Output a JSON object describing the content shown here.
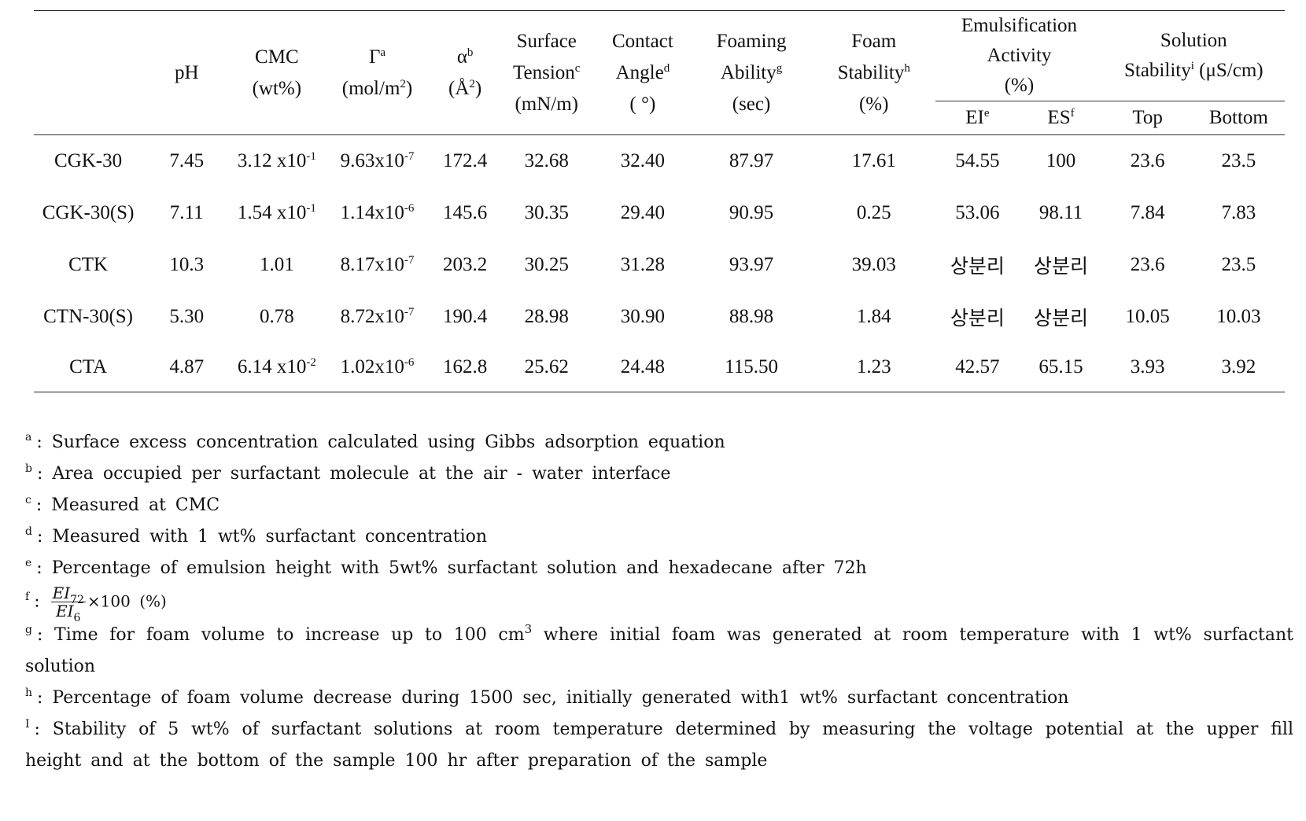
{
  "table": {
    "columns": [
      {
        "lines": [
          [
            {
              "t": "pH"
            }
          ]
        ]
      },
      {
        "lines": [
          [
            {
              "t": "CMC"
            }
          ],
          [
            {
              "t": "(wt%)"
            }
          ]
        ]
      },
      {
        "lines": [
          [
            {
              "t": "Γ"
            },
            {
              "s": "a"
            }
          ],
          [
            {
              "t": "(mol/m"
            },
            {
              "s": "2"
            },
            {
              "t": ")"
            }
          ]
        ]
      },
      {
        "lines": [
          [
            {
              "t": "α"
            },
            {
              "s": "b"
            }
          ],
          [
            {
              "t": "(Å"
            },
            {
              "s": "2"
            },
            {
              "t": ")"
            }
          ]
        ]
      },
      {
        "lines": [
          [
            {
              "t": "Surface"
            }
          ],
          [
            {
              "t": "Tension"
            },
            {
              "s": "c"
            }
          ],
          [
            {
              "t": "(mN/m)"
            }
          ]
        ]
      },
      {
        "lines": [
          [
            {
              "t": "Contact"
            }
          ],
          [
            {
              "t": "Angle"
            },
            {
              "s": "d"
            }
          ],
          [
            {
              "t": "( °)"
            }
          ]
        ]
      },
      {
        "lines": [
          [
            {
              "t": "Foaming"
            }
          ],
          [
            {
              "t": "Ability"
            },
            {
              "s": "g"
            }
          ],
          [
            {
              "t": "(sec)"
            }
          ]
        ]
      },
      {
        "lines": [
          [
            {
              "t": "Foam"
            }
          ],
          [
            {
              "t": "Stability"
            },
            {
              "s": "h"
            }
          ],
          [
            {
              "t": "(%)"
            }
          ]
        ]
      }
    ],
    "groups": [
      {
        "lines": [
          [
            {
              "t": "Emulsification"
            }
          ],
          [
            {
              "t": "Activity"
            }
          ],
          [
            {
              "t": "(%)"
            }
          ]
        ],
        "sub": [
          [
            {
              "t": "EI"
            },
            {
              "s": "e"
            }
          ],
          [
            {
              "t": "ES"
            },
            {
              "s": "f"
            }
          ]
        ]
      },
      {
        "lines": [
          [
            {
              "t": "Solution"
            }
          ],
          [
            {
              "t": "Stability"
            },
            {
              "s": "i"
            },
            {
              "t": " (μS/cm)"
            }
          ]
        ],
        "sub": [
          [
            {
              "t": "Top"
            }
          ],
          [
            {
              "t": "Bottom"
            }
          ]
        ]
      }
    ],
    "rows": [
      {
        "label": "CGK-30",
        "cells": [
          "7.45",
          [
            {
              "t": "3.12 x10"
            },
            {
              "s": "-1"
            }
          ],
          [
            {
              "t": "9.63x10"
            },
            {
              "s": "-7"
            }
          ],
          "172.4",
          "32.68",
          "32.40",
          "87.97",
          "17.61",
          "54.55",
          "100",
          "23.6",
          "23.5"
        ]
      },
      {
        "label": "CGK-30(S)",
        "cells": [
          "7.11",
          [
            {
              "t": "1.54 x10"
            },
            {
              "s": "-1"
            }
          ],
          [
            {
              "t": "1.14x10"
            },
            {
              "s": "-6"
            }
          ],
          "145.6",
          "30.35",
          "29.40",
          "90.95",
          "0.25",
          "53.06",
          "98.11",
          "7.84",
          "7.83"
        ]
      },
      {
        "label": "CTK",
        "cells": [
          "10.3",
          "1.01",
          [
            {
              "t": "8.17x10"
            },
            {
              "s": "-7"
            }
          ],
          "203.2",
          "30.25",
          "31.28",
          "93.97",
          "39.03",
          "상분리",
          "상분리",
          "23.6",
          "23.5"
        ]
      },
      {
        "label": "CTN-30(S)",
        "cells": [
          "5.30",
          "0.78",
          [
            {
              "t": "8.72x10"
            },
            {
              "s": "-7"
            }
          ],
          "190.4",
          "28.98",
          "30.90",
          "88.98",
          "1.84",
          "상분리",
          "상분리",
          "10.05",
          "10.03"
        ]
      },
      {
        "label": "CTA",
        "cells": [
          "4.87",
          [
            {
              "t": "6.14 x10"
            },
            {
              "s": "-2"
            }
          ],
          [
            {
              "t": "1.02x10"
            },
            {
              "s": "-6"
            }
          ],
          "162.8",
          "25.62",
          "24.48",
          "115.50",
          "1.23",
          "42.57",
          "65.15",
          "3.93",
          "3.92"
        ]
      }
    ]
  },
  "footnotes": [
    {
      "mark": "a",
      "parts": [
        {
          "t": ": Surface excess concentration calculated using Gibbs adsorption equation"
        }
      ]
    },
    {
      "mark": "b",
      "parts": [
        {
          "t": ": Area occupied per surfactant molecule at the air - water interface"
        }
      ]
    },
    {
      "mark": "c",
      "parts": [
        {
          "t": ": Measured at CMC"
        }
      ]
    },
    {
      "mark": "d",
      "parts": [
        {
          "t": ": Measured with 1 wt% surfactant concentration"
        }
      ]
    },
    {
      "mark": "e",
      "parts": [
        {
          "t": ": Percentage of emulsion height with 5wt% surfactant solution and hexadecane after 72h"
        }
      ]
    },
    {
      "mark": "f",
      "parts": [
        {
          "t": ": "
        },
        {
          "frac": {
            "num": "EI",
            "num_sub": "72",
            "den": "EI",
            "den_sub": "6"
          }
        },
        {
          "tail": "×100 (%)"
        }
      ]
    },
    {
      "mark": "g",
      "parts": [
        {
          "t": ": Time for foam volume to increase up to 100 cm"
        },
        {
          "s": "3"
        },
        {
          "t": " where initial foam was generated at room temperature with 1 wt% surfactant solution"
        }
      ]
    },
    {
      "mark": "h",
      "parts": [
        {
          "t": ": Percentage of foam volume decrease during 1500 sec, initially generated with1 wt% surfactant concentration"
        }
      ]
    },
    {
      "mark": "I",
      "parts": [
        {
          "t": ": Stability of 5 wt% of surfactant solutions at room temperature determined by measuring the voltage potential at the upper fill height and at the bottom of the sample 100 hr after preparation of the sample"
        }
      ]
    }
  ]
}
